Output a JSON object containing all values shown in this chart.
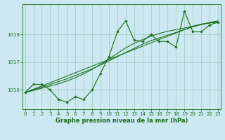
{
  "title": "Graphe pression niveau de la mer (hPa)",
  "bg_color": "#cce8f0",
  "grid_color": "#99ccbb",
  "line_color": "#1a6b1a",
  "x_values": [
    0,
    1,
    2,
    3,
    4,
    5,
    6,
    7,
    8,
    9,
    10,
    11,
    12,
    13,
    14,
    15,
    16,
    17,
    18,
    19,
    20,
    21,
    22,
    23
  ],
  "y_main": [
    1015.9,
    1016.2,
    1016.2,
    1016.0,
    1015.65,
    1015.55,
    1015.75,
    1015.65,
    1016.0,
    1016.6,
    1017.2,
    1018.1,
    1018.5,
    1017.8,
    1017.75,
    1018.0,
    1017.75,
    1017.75,
    1017.55,
    1018.85,
    1018.1,
    1018.1,
    1018.35,
    1018.45
  ],
  "y_line1": [
    1015.9,
    1016.02,
    1016.14,
    1016.26,
    1016.38,
    1016.5,
    1016.62,
    1016.74,
    1016.86,
    1016.98,
    1017.1,
    1017.22,
    1017.34,
    1017.46,
    1017.58,
    1017.7,
    1017.82,
    1017.94,
    1018.06,
    1018.18,
    1018.3,
    1018.38,
    1018.42,
    1018.45
  ],
  "y_line2": [
    1015.9,
    1016.0,
    1016.1,
    1016.2,
    1016.3,
    1016.4,
    1016.52,
    1016.64,
    1016.76,
    1016.9,
    1017.05,
    1017.2,
    1017.35,
    1017.5,
    1017.65,
    1017.78,
    1017.88,
    1017.98,
    1018.08,
    1018.18,
    1018.28,
    1018.36,
    1018.42,
    1018.47
  ],
  "y_line3": [
    1015.9,
    1015.98,
    1016.06,
    1016.14,
    1016.22,
    1016.32,
    1016.44,
    1016.58,
    1016.74,
    1016.92,
    1017.12,
    1017.32,
    1017.52,
    1017.68,
    1017.82,
    1017.94,
    1018.04,
    1018.12,
    1018.18,
    1018.24,
    1018.3,
    1018.37,
    1018.44,
    1018.5
  ],
  "ylim": [
    1015.3,
    1019.1
  ],
  "yticks": [
    1016,
    1017,
    1018
  ],
  "xlim": [
    -0.3,
    23.3
  ],
  "xticks": [
    0,
    1,
    2,
    3,
    4,
    5,
    6,
    7,
    8,
    9,
    10,
    11,
    12,
    13,
    14,
    15,
    16,
    17,
    18,
    19,
    20,
    21,
    22,
    23
  ],
  "tick_fontsize": 5.0,
  "label_fontsize": 6.0
}
